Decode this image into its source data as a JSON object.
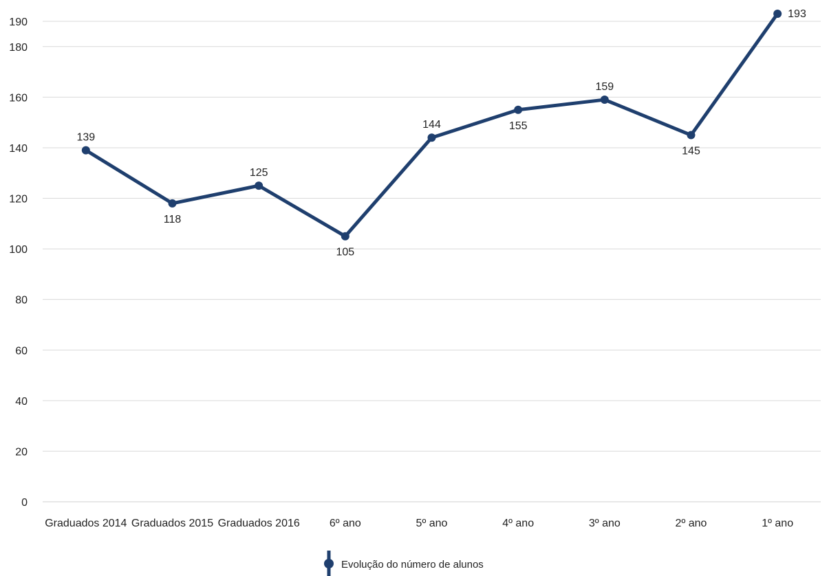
{
  "chart_data": {
    "type": "line",
    "categories": [
      "Graduados 2014",
      "Graduados 2015",
      "Graduados 2016",
      "6º ano",
      "5º ano",
      "4º ano",
      "3º ano",
      "2º ano",
      "1º ano"
    ],
    "series": [
      {
        "name": "Evolução do número de alunos",
        "values": [
          139,
          118,
          125,
          105,
          144,
          155,
          159,
          145,
          193
        ],
        "color": "#1f3f6e"
      }
    ],
    "data_label_positions": [
      "above",
      "below",
      "above",
      "below",
      "above",
      "below",
      "above",
      "below",
      "right"
    ],
    "ylim": [
      0,
      190
    ],
    "yticks": [
      0,
      20,
      40,
      60,
      80,
      100,
      120,
      140,
      160,
      180,
      190
    ],
    "grid": true,
    "legend_position": "bottom"
  }
}
